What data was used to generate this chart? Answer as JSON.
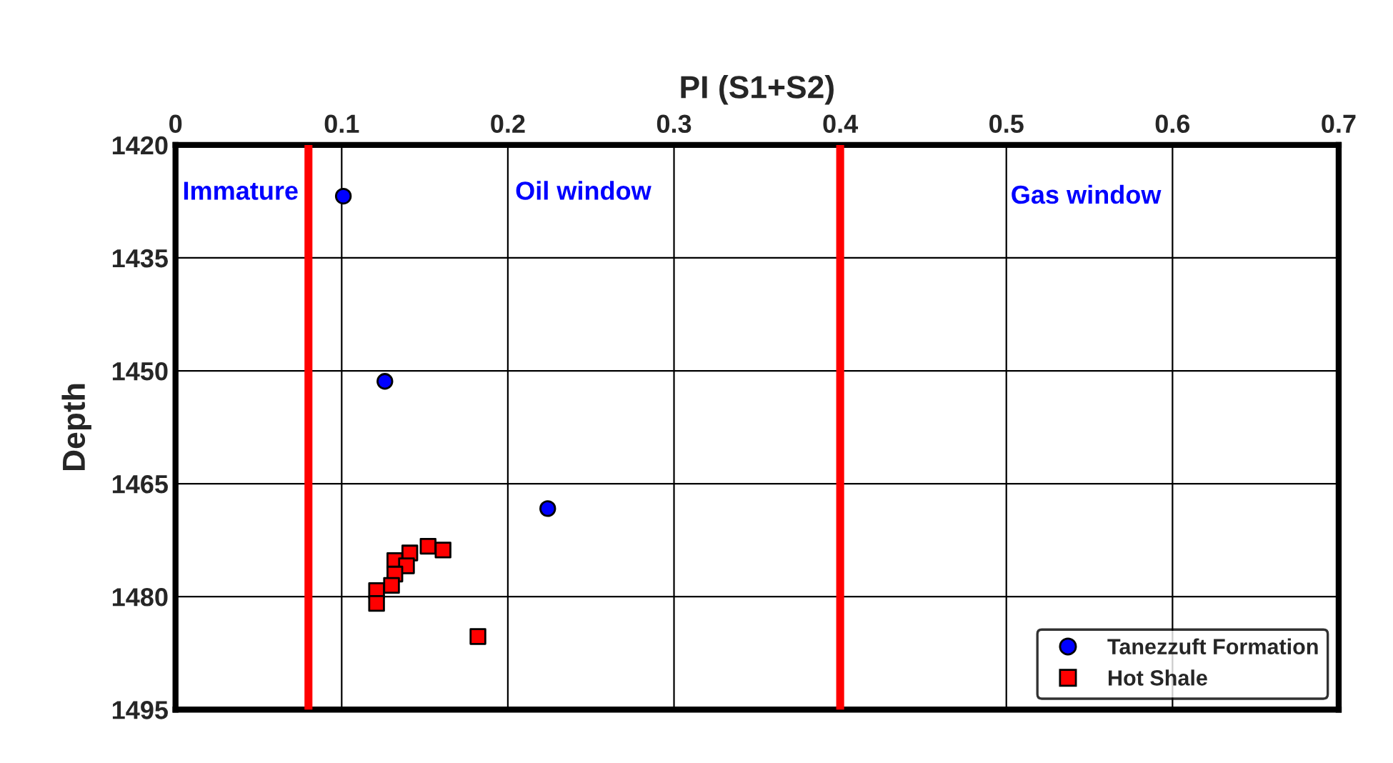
{
  "chart_data": {
    "type": "scatter",
    "xlabel": "PI (S1+S2)",
    "ylabel": "Depth",
    "xlim": [
      0,
      0.7
    ],
    "xticks": [
      0,
      0.1,
      0.2,
      0.3,
      0.4,
      0.5,
      0.6,
      0.7
    ],
    "ylim": [
      1495,
      1420
    ],
    "yticks": [
      1420,
      1435,
      1450,
      1465,
      1480,
      1495
    ],
    "grid": true,
    "legend": "bottom right",
    "series": [
      {
        "name": "Tanezzuft Formation",
        "color": "#0000ff",
        "marker": "circle",
        "x": [
          0.101,
          0.126,
          0.224
        ],
        "values": [
          1426.8,
          1451.4,
          1468.3
        ]
      },
      {
        "name": "Hot Shale",
        "color": "#ff0000",
        "marker": "square",
        "x": [
          0.152,
          0.161,
          0.141,
          0.132,
          0.139,
          0.132,
          0.13,
          0.121,
          0.121,
          0.182
        ],
        "values": [
          1473.3,
          1473.8,
          1474.2,
          1475.2,
          1475.9,
          1477.0,
          1478.5,
          1479.2,
          1480.9,
          1485.3
        ]
      }
    ],
    "ref_lines": [
      {
        "axis": "x",
        "value": 0.08,
        "color": "#ff0000"
      },
      {
        "axis": "x",
        "value": 0.4,
        "color": "#ff0000"
      }
    ],
    "annotations": [
      "Immature",
      "Oil window",
      "Gas window"
    ]
  }
}
